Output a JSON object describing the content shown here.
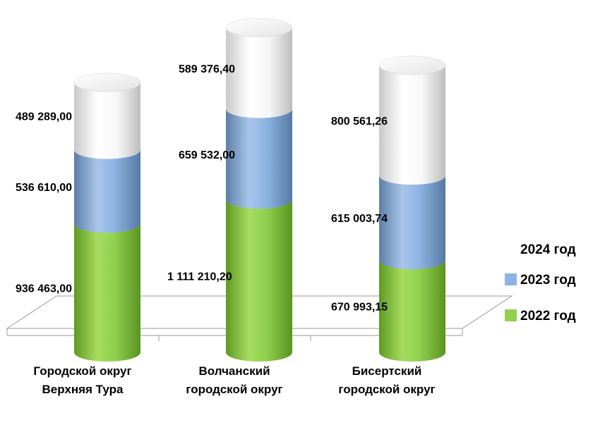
{
  "chart_data": {
    "type": "bar",
    "stacked": true,
    "style": "3d-cylinder",
    "title": "",
    "xlabel": "",
    "ylabel": "",
    "ylim": [
      0,
      2500000
    ],
    "grid": false,
    "legend_position": "right",
    "categories": [
      [
        "Городской округ",
        "Верхняя Тура"
      ],
      [
        "Волчанский",
        "городской округ"
      ],
      [
        "Бисертский",
        "городской округ"
      ]
    ],
    "series": [
      {
        "name": "2022 год",
        "color": "#92d050",
        "values": [
          936463.0,
          1111210.2,
          670993.15
        ],
        "labels": [
          "936 463,00",
          "1 111 210,20",
          "670 993,15"
        ]
      },
      {
        "name": "2023 год",
        "color": "#8eb4e3",
        "values": [
          536610.0,
          659532.0,
          615003.74
        ],
        "labels": [
          "536 610,00",
          "659 532,00",
          "615 003,74"
        ]
      },
      {
        "name": "2024 год",
        "color": "#ffffff",
        "values": [
          489289.0,
          589376.4,
          800561.26
        ],
        "labels": [
          "489 289,00",
          "589 376,40",
          "800 561,26"
        ]
      }
    ]
  }
}
